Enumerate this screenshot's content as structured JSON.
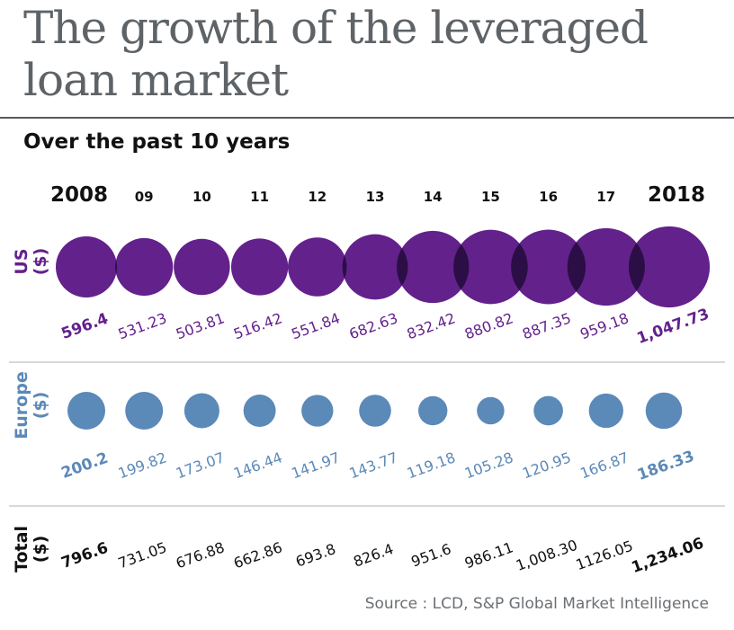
{
  "title": "The growth of the leveraged loan market",
  "subtitle": "Over the past 10 years",
  "source": "Source : LCD, S&P Global Market Intelligence",
  "colors": {
    "us": "#63218c",
    "europe": "#5b89b8",
    "total": "#111111",
    "title": "#5e6367"
  },
  "chart_data": {
    "type": "bubble",
    "categories": [
      "2008",
      "09",
      "10",
      "11",
      "12",
      "13",
      "14",
      "15",
      "16",
      "17",
      "2018"
    ],
    "series": [
      {
        "name": "US",
        "unit": "($)",
        "values": [
          596.4,
          531.23,
          503.81,
          516.42,
          551.84,
          682.63,
          832.42,
          880.82,
          887.35,
          959.18,
          1047.73
        ],
        "labels": [
          "596.4",
          "531.23",
          "503.81",
          "516.42",
          "551.84",
          "682.63",
          "832.42",
          "880.82",
          "887.35",
          "959.18",
          "1,047.73"
        ]
      },
      {
        "name": "Europe",
        "unit": "($)",
        "values": [
          200.2,
          199.82,
          173.07,
          146.44,
          141.97,
          143.77,
          119.18,
          105.28,
          120.95,
          166.87,
          186.33
        ],
        "labels": [
          "200.2",
          "199.82",
          "173.07",
          "146.44",
          "141.97",
          "143.77",
          "119.18",
          "105.28",
          "120.95",
          "166.87",
          "186.33"
        ]
      },
      {
        "name": "Total",
        "unit": "($)",
        "values": [
          796.6,
          731.05,
          676.88,
          662.86,
          693.8,
          826.4,
          951.6,
          986.11,
          1008.3,
          1126.05,
          1234.06
        ],
        "labels": [
          "796.6",
          "731.05",
          "676.88",
          "662.86",
          "693.8",
          "826.4",
          "951.6",
          "986.11",
          "1,008.30",
          "1126.05",
          "1,234.06"
        ]
      }
    ]
  }
}
